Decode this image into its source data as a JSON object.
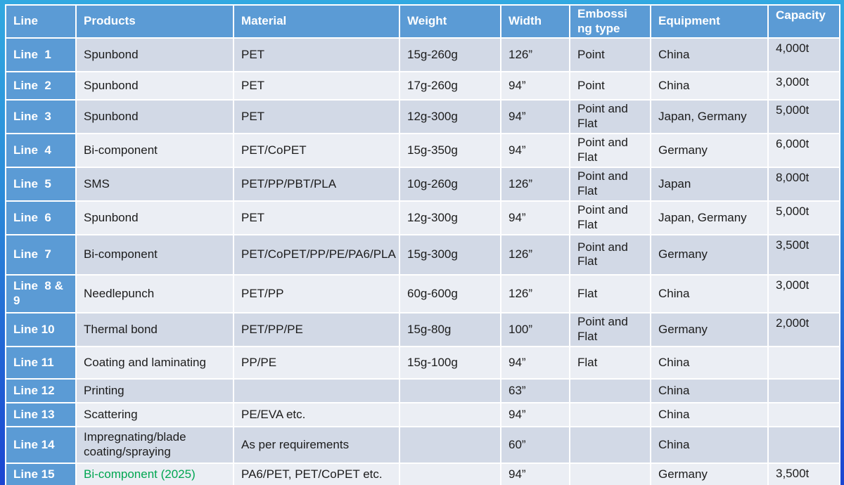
{
  "colors": {
    "header_bg": "#5B9BD5",
    "band_dark": "#D2D9E6",
    "band_light": "#EBEEF4",
    "highlight_green": "#00A651",
    "frame_top": "#31A9E1",
    "frame_bottom": "#1B45D2"
  },
  "table": {
    "columns": [
      {
        "key": "line",
        "label": "Line"
      },
      {
        "key": "products",
        "label": "Products"
      },
      {
        "key": "material",
        "label": "Material"
      },
      {
        "key": "weight",
        "label": "Weight"
      },
      {
        "key": "width",
        "label": "Width"
      },
      {
        "key": "embossing",
        "label": "Embossing type"
      },
      {
        "key": "equipment",
        "label": "Equipment"
      },
      {
        "key": "capacity",
        "label": "Capacity"
      }
    ],
    "rows": [
      {
        "line": "Line  1",
        "products": "Spunbond",
        "material": "PET",
        "weight": "15g-260g",
        "width": "126”",
        "embossing": "Point",
        "equipment": "China",
        "capacity": "4,000t"
      },
      {
        "line": "Line  2",
        "products": "Spunbond",
        "material": "PET",
        "weight": "17g-260g",
        "width": "94”",
        "embossing": "Point",
        "equipment": "China",
        "capacity": "3,000t"
      },
      {
        "line": "Line  3",
        "products": "Spunbond",
        "material": "PET",
        "weight": "12g-300g",
        "width": "94”",
        "embossing": "Point and Flat",
        "equipment": "Japan, Germany",
        "capacity": "5,000t"
      },
      {
        "line": "Line  4",
        "products": "Bi-component",
        "material": "PET/CoPET",
        "weight": "15g-350g",
        "width": "94”",
        "embossing": "Point and Flat",
        "equipment": "Germany",
        "capacity": "6,000t"
      },
      {
        "line": "Line  5",
        "products": "SMS",
        "material": "PET/PP/PBT/PLA",
        "weight": "10g-260g",
        "width": "126”",
        "embossing": "Point and Flat",
        "equipment": "Japan",
        "capacity": "8,000t"
      },
      {
        "line": "Line  6",
        "products": "Spunbond",
        "material": "PET",
        "weight": "12g-300g",
        "width": "94”",
        "embossing": "Point and Flat",
        "equipment": "Japan, Germany",
        "capacity": "5,000t"
      },
      {
        "line": "Line  7",
        "products": "Bi-component",
        "material": "PET/CoPET/PP/PE/PA6/PLA",
        "weight": "15g-300g",
        "width": "126”",
        "embossing": "Point and Flat",
        "equipment": "Germany",
        "capacity": "3,500t"
      },
      {
        "line": "Line  8 & 9",
        "products": "Needlepunch",
        "material": "PET/PP",
        "weight": "60g-600g",
        "width": "126”",
        "embossing": "Flat",
        "equipment": "China",
        "capacity": "3,000t"
      },
      {
        "line": "Line 10",
        "products": "Thermal bond",
        "material": "PET/PP/PE",
        "weight": "15g-80g",
        "width": "100”",
        "embossing": "Point and Flat",
        "equipment": "Germany",
        "capacity": "2,000t"
      },
      {
        "line": "Line 11",
        "products": "Coating and laminating",
        "material": "PP/PE",
        "weight": "15g-100g",
        "width": "94”",
        "embossing": "Flat",
        "equipment": "China",
        "capacity": ""
      },
      {
        "line": "Line 12",
        "products": "Printing",
        "material": "",
        "weight": "",
        "width": "63”",
        "embossing": "",
        "equipment": "China",
        "capacity": ""
      },
      {
        "line": "Line 13",
        "products": "Scattering",
        "material": "PE/EVA etc.",
        "weight": "",
        "width": "94”",
        "embossing": "",
        "equipment": "China",
        "capacity": ""
      },
      {
        "line": "Line 14",
        "products": "Impregnating/blade coating/spraying",
        "material": "As per requirements",
        "weight": "",
        "width": "60”",
        "embossing": "",
        "equipment": "China",
        "capacity": ""
      },
      {
        "line": "Line 15",
        "products": "Bi-component (2025)",
        "products_highlight": true,
        "material": "PA6/PET, PET/CoPET etc.",
        "weight": "",
        "width": "94”",
        "embossing": "",
        "equipment": "Germany",
        "capacity": "3,500t"
      }
    ]
  }
}
